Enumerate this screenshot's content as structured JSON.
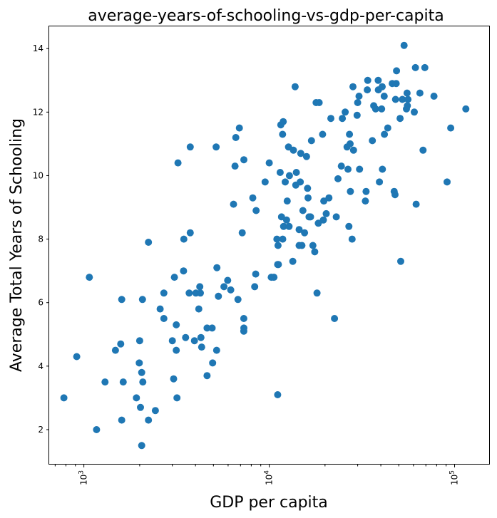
{
  "chart_data": {
    "type": "scatter",
    "title": "average-years-of-schooling-vs-gdp-per-capita",
    "xlabel": "GDP per capita",
    "ylabel": "Average Total Years of Schooling",
    "xscale": "log",
    "xlim": [
      650,
      155000
    ],
    "ylim": [
      0.9,
      14.7
    ],
    "xticks": [
      {
        "value": 1000,
        "label": "10",
        "exp": "3"
      },
      {
        "value": 10000,
        "label": "10",
        "exp": "4"
      },
      {
        "value": 100000,
        "label": "10",
        "exp": "5"
      }
    ],
    "yticks": [
      2,
      4,
      6,
      8,
      10,
      12,
      14
    ],
    "grid": false,
    "color": "#1f77b4",
    "points": [
      [
        780,
        3.0
      ],
      [
        915,
        4.3
      ],
      [
        1070,
        6.8
      ],
      [
        1170,
        2.0
      ],
      [
        1300,
        3.5
      ],
      [
        1480,
        4.5
      ],
      [
        1580,
        4.7
      ],
      [
        1600,
        6.1
      ],
      [
        1600,
        2.3
      ],
      [
        1630,
        3.5
      ],
      [
        1920,
        3.0
      ],
      [
        1990,
        4.1
      ],
      [
        2000,
        4.8
      ],
      [
        2020,
        2.7
      ],
      [
        2050,
        3.8
      ],
      [
        2050,
        1.5
      ],
      [
        2070,
        6.1
      ],
      [
        2080,
        3.5
      ],
      [
        2230,
        2.3
      ],
      [
        2230,
        7.9
      ],
      [
        2430,
        2.6
      ],
      [
        2580,
        5.8
      ],
      [
        2700,
        5.5
      ],
      [
        2700,
        6.3
      ],
      [
        3000,
        4.8
      ],
      [
        3050,
        3.6
      ],
      [
        3080,
        6.8
      ],
      [
        3150,
        5.3
      ],
      [
        3150,
        4.5
      ],
      [
        3180,
        3.0
      ],
      [
        3220,
        10.4
      ],
      [
        3450,
        7.0
      ],
      [
        3460,
        8.0
      ],
      [
        3540,
        4.9
      ],
      [
        3700,
        6.3
      ],
      [
        3750,
        8.2
      ],
      [
        3750,
        10.9
      ],
      [
        3950,
        4.8
      ],
      [
        4020,
        6.3
      ],
      [
        4170,
        5.8
      ],
      [
        4220,
        6.5
      ],
      [
        4250,
        6.3
      ],
      [
        4280,
        4.9
      ],
      [
        4320,
        4.6
      ],
      [
        4620,
        3.7
      ],
      [
        4620,
        5.2
      ],
      [
        4920,
        5.2
      ],
      [
        4950,
        4.1
      ],
      [
        5170,
        10.9
      ],
      [
        5200,
        4.5
      ],
      [
        5220,
        7.1
      ],
      [
        5320,
        6.2
      ],
      [
        5700,
        6.5
      ],
      [
        5970,
        6.7
      ],
      [
        6200,
        6.4
      ],
      [
        6420,
        9.1
      ],
      [
        6540,
        10.3
      ],
      [
        6600,
        11.2
      ],
      [
        6780,
        6.1
      ],
      [
        6900,
        11.5
      ],
      [
        7150,
        8.2
      ],
      [
        7290,
        5.1
      ],
      [
        7290,
        5.5
      ],
      [
        7300,
        10.5
      ],
      [
        7300,
        5.2
      ],
      [
        8150,
        9.3
      ],
      [
        8350,
        6.5
      ],
      [
        8450,
        6.9
      ],
      [
        8500,
        8.9
      ],
      [
        9500,
        9.8
      ],
      [
        10000,
        10.4
      ],
      [
        10250,
        6.8
      ],
      [
        10600,
        6.8
      ],
      [
        11000,
        8.0
      ],
      [
        11100,
        7.2
      ],
      [
        11100,
        3.1
      ],
      [
        11150,
        7.8
      ],
      [
        11200,
        7.2
      ],
      [
        11450,
        10.1
      ],
      [
        11550,
        11.6
      ],
      [
        11650,
        8.7
      ],
      [
        11800,
        11.3
      ],
      [
        11820,
        8.0
      ],
      [
        11900,
        11.7
      ],
      [
        11950,
        8.4
      ],
      [
        12200,
        9.8
      ],
      [
        12400,
        8.6
      ],
      [
        12500,
        9.2
      ],
      [
        12700,
        10.9
      ],
      [
        12800,
        8.4
      ],
      [
        12850,
        10.0
      ],
      [
        13400,
        7.3
      ],
      [
        13500,
        10.8
      ],
      [
        13800,
        12.8
      ],
      [
        13900,
        9.7
      ],
      [
        14000,
        10.1
      ],
      [
        14500,
        7.8
      ],
      [
        14500,
        8.3
      ],
      [
        14700,
        9.8
      ],
      [
        14800,
        10.7
      ],
      [
        15000,
        7.8
      ],
      [
        15200,
        8.9
      ],
      [
        15500,
        8.2
      ],
      [
        15900,
        10.6
      ],
      [
        16100,
        9.6
      ],
      [
        16200,
        9.3
      ],
      [
        16400,
        8.7
      ],
      [
        16700,
        8.7
      ],
      [
        16900,
        11.1
      ],
      [
        17200,
        7.8
      ],
      [
        17600,
        7.6
      ],
      [
        17900,
        12.3
      ],
      [
        18100,
        6.3
      ],
      [
        18400,
        8.5
      ],
      [
        18600,
        12.3
      ],
      [
        19400,
        11.3
      ],
      [
        19600,
        8.6
      ],
      [
        19700,
        9.2
      ],
      [
        20300,
        8.8
      ],
      [
        21000,
        9.3
      ],
      [
        21500,
        11.8
      ],
      [
        22500,
        5.5
      ],
      [
        23000,
        8.7
      ],
      [
        23500,
        9.9
      ],
      [
        24500,
        10.3
      ],
      [
        24800,
        11.8
      ],
      [
        25700,
        12.0
      ],
      [
        26300,
        10.9
      ],
      [
        26600,
        10.2
      ],
      [
        26900,
        8.4
      ],
      [
        27100,
        11.3
      ],
      [
        27300,
        11.0
      ],
      [
        27400,
        9.5
      ],
      [
        28000,
        8.0
      ],
      [
        28300,
        12.8
      ],
      [
        28500,
        10.8
      ],
      [
        29800,
        11.9
      ],
      [
        30000,
        12.3
      ],
      [
        30500,
        12.5
      ],
      [
        30700,
        10.2
      ],
      [
        33000,
        9.2
      ],
      [
        33300,
        9.5
      ],
      [
        33800,
        12.7
      ],
      [
        34000,
        13.0
      ],
      [
        36000,
        11.1
      ],
      [
        36600,
        12.2
      ],
      [
        37500,
        12.1
      ],
      [
        38700,
        13.0
      ],
      [
        38800,
        12.7
      ],
      [
        39300,
        9.8
      ],
      [
        40400,
        12.1
      ],
      [
        40700,
        12.8
      ],
      [
        40800,
        10.2
      ],
      [
        41700,
        12.5
      ],
      [
        41800,
        11.3
      ],
      [
        43600,
        11.5
      ],
      [
        46100,
        12.9
      ],
      [
        47200,
        9.5
      ],
      [
        47700,
        9.4
      ],
      [
        48000,
        12.4
      ],
      [
        48400,
        12.9
      ],
      [
        48600,
        13.3
      ],
      [
        50800,
        11.8
      ],
      [
        51200,
        7.3
      ],
      [
        52300,
        12.4
      ],
      [
        53400,
        14.1
      ],
      [
        55000,
        12.1
      ],
      [
        55400,
        12.6
      ],
      [
        55600,
        12.2
      ],
      [
        56000,
        12.4
      ],
      [
        60600,
        12.0
      ],
      [
        61500,
        13.4
      ],
      [
        62000,
        9.1
      ],
      [
        65000,
        12.6
      ],
      [
        67600,
        10.8
      ],
      [
        69100,
        13.4
      ],
      [
        77400,
        12.5
      ],
      [
        91100,
        9.8
      ],
      [
        95300,
        11.5
      ],
      [
        115000,
        12.1
      ]
    ]
  }
}
